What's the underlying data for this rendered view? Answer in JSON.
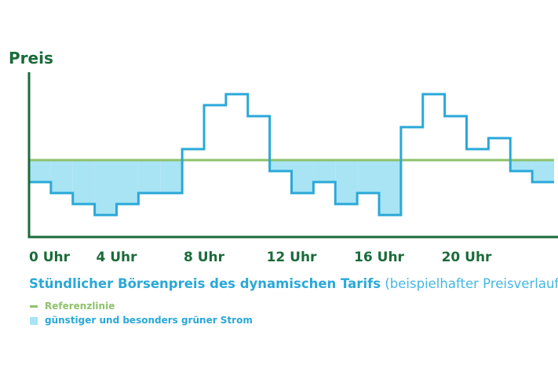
{
  "chart_data": {
    "type": "line",
    "step": true,
    "ylabel": "Preis",
    "x": [
      0,
      1,
      2,
      3,
      4,
      5,
      6,
      7,
      8,
      9,
      10,
      11,
      12,
      13,
      14,
      15,
      16,
      17,
      18,
      19,
      20,
      21,
      22,
      23,
      24
    ],
    "values": [
      -2,
      -3,
      -4,
      -5,
      -4,
      -3,
      -3,
      1,
      5,
      6,
      4,
      -1,
      -3,
      -2,
      -4,
      -3,
      -5,
      3,
      6,
      4,
      1,
      2,
      -1,
      -2,
      -2
    ],
    "reference": 0,
    "ylim": [
      -7,
      8
    ],
    "xlim": [
      0,
      24
    ],
    "x_ticks": [
      0,
      4,
      8,
      12,
      16,
      20
    ],
    "x_tick_labels": [
      "0 Uhr",
      "4 Uhr",
      "8 Uhr",
      "12 Uhr",
      "16 Uhr",
      "20 Uhr"
    ],
    "colors": {
      "axis": "#1b6b3a",
      "price": "#2aa8d8",
      "fill": "#a8e4f4",
      "reference": "#8ec26b"
    }
  },
  "caption": {
    "title": "Stündlicher Börsenpreis des dynamischen Tarifs",
    "subtitle": "(beispielhafter Preisverlauf)"
  },
  "legend": {
    "reference": "Referenzlinie",
    "cheap": "günstiger und besonders grüner Strom"
  }
}
